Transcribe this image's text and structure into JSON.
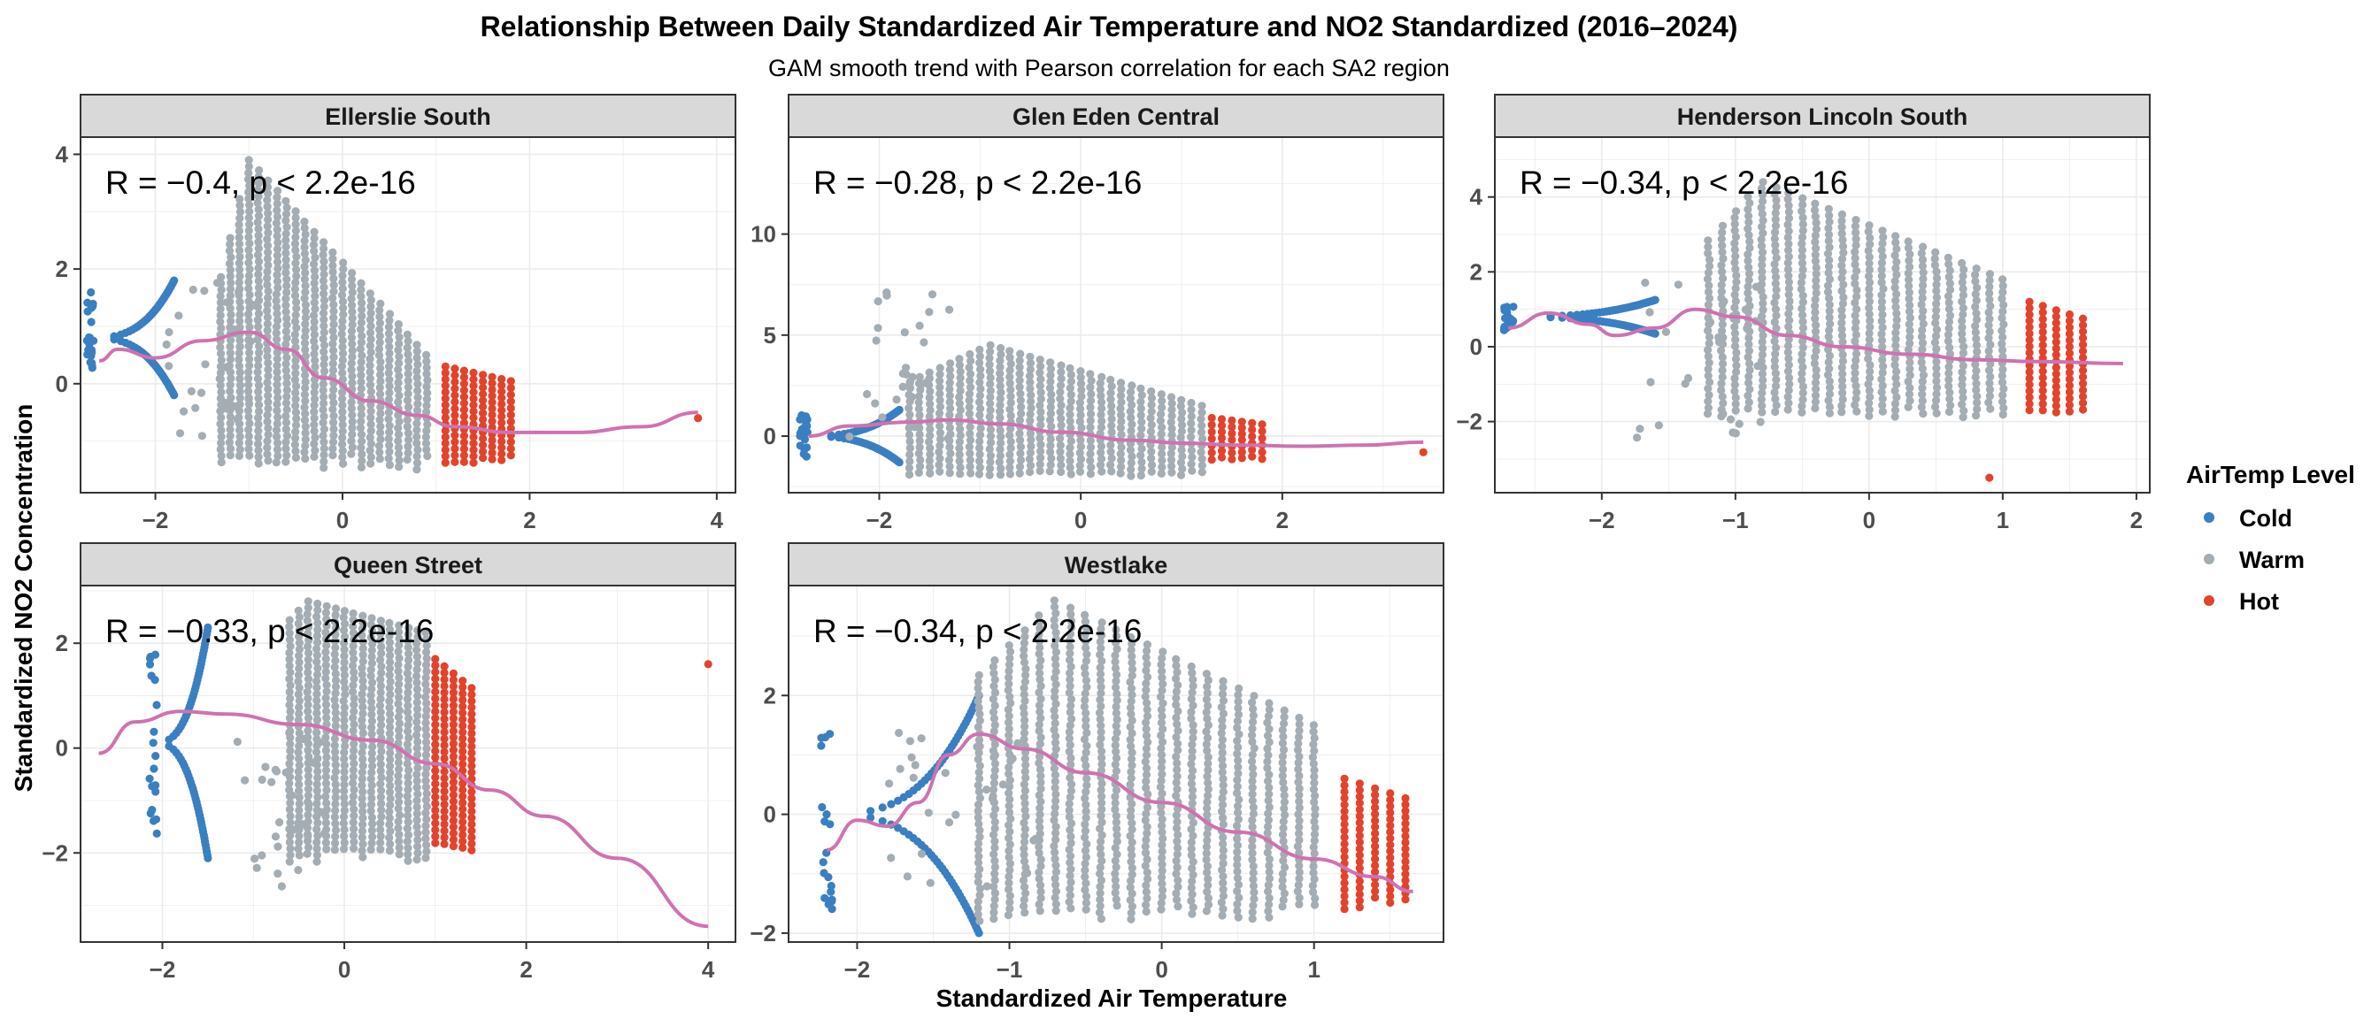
{
  "figure": {
    "title": "Relationship Between Daily Standardized Air Temperature and NO2 Standardized (2016–2024)",
    "subtitle": "GAM smooth trend with Pearson correlation for each SA2 region",
    "xlabel": "Standardized Air Temperature",
    "ylabel": "Standardized NO2 Concentration"
  },
  "legend": {
    "title": "AirTemp Level",
    "items": [
      {
        "label": "Cold",
        "color": "#3a7fc1"
      },
      {
        "label": "Warm",
        "color": "#a3adb3"
      },
      {
        "label": "Hot",
        "color": "#e2432c"
      }
    ]
  },
  "colors": {
    "cold": "#3a7fc1",
    "warm": "#a3adb3",
    "hot": "#e2432c",
    "smooth": "#cf72b0",
    "strip_fill": "#d9d9d9",
    "grid": "#ebebeb"
  },
  "chart_data": [
    {
      "type": "scatter",
      "panel": "Ellerslie South",
      "stat_label": "R = −0.4, p < 2.2e-16",
      "xlim": [
        -2.8,
        4.2
      ],
      "ylim": [
        -1.9,
        4.3
      ],
      "xticks": [
        -2,
        0,
        2,
        4
      ],
      "yticks": [
        0,
        2,
        4
      ],
      "cold_curve": {
        "yc": 0.8,
        "amp": 1.0,
        "vx": -2.7,
        "ex": -1.8
      },
      "warm_columns": {
        "start": -1.3,
        "end": 0.9,
        "step": 0.1,
        "center": -1.0,
        "top_peak": 3.9,
        "top_end": 0.5,
        "bottom": -1.5
      },
      "hot_columns": {
        "start": 1.1,
        "end": 1.8,
        "step": 0.1,
        "top": 0.3,
        "bottom": -1.4
      },
      "outlier": [
        3.8,
        -0.6
      ],
      "smooth": [
        [
          -2.6,
          0.4
        ],
        [
          -2.4,
          0.6
        ],
        [
          -2.0,
          0.45
        ],
        [
          -1.5,
          0.75
        ],
        [
          -1.0,
          0.9
        ],
        [
          -0.6,
          0.6
        ],
        [
          -0.2,
          0.1
        ],
        [
          0.3,
          -0.3
        ],
        [
          0.8,
          -0.55
        ],
        [
          1.2,
          -0.75
        ],
        [
          1.8,
          -0.85
        ],
        [
          2.5,
          -0.85
        ],
        [
          3.2,
          -0.75
        ],
        [
          3.8,
          -0.5
        ]
      ]
    },
    {
      "type": "scatter",
      "panel": "Glen Eden Central",
      "stat_label": "R = −0.28, p < 2.2e-16",
      "xlim": [
        -2.9,
        3.6
      ],
      "ylim": [
        -2.8,
        14.8
      ],
      "xticks": [
        -2,
        0,
        2
      ],
      "yticks": [
        0,
        5,
        10
      ],
      "cold_curve": {
        "yc": 0.0,
        "amp": 1.3,
        "vx": -2.75,
        "ex": -1.8
      },
      "warm_columns": {
        "start": -1.7,
        "end": 1.2,
        "step": 0.1,
        "center": -0.9,
        "top_peak": 4.5,
        "top_end": 1.5,
        "bottom": -2.0
      },
      "hot_columns": {
        "start": 1.3,
        "end": 1.8,
        "step": 0.1,
        "top": 0.9,
        "bottom": -1.2
      },
      "outlier": [
        3.4,
        -0.8
      ],
      "smooth": [
        [
          -2.7,
          0.0
        ],
        [
          -2.3,
          0.5
        ],
        [
          -1.7,
          0.7
        ],
        [
          -1.3,
          0.8
        ],
        [
          -0.8,
          0.6
        ],
        [
          -0.2,
          0.2
        ],
        [
          0.5,
          -0.2
        ],
        [
          1.0,
          -0.35
        ],
        [
          1.6,
          -0.45
        ],
        [
          2.2,
          -0.5
        ],
        [
          2.8,
          -0.45
        ],
        [
          3.4,
          -0.3
        ]
      ]
    },
    {
      "type": "scatter",
      "panel": "Henderson Lincoln South",
      "stat_label": "R = −0.34, p < 2.2e-16",
      "xlim": [
        -2.8,
        2.1
      ],
      "ylim": [
        -3.9,
        5.6
      ],
      "xticks": [
        -2,
        -1,
        0,
        1,
        2
      ],
      "yticks": [
        -2,
        0,
        2,
        4
      ],
      "cold_curve": {
        "yc": 0.8,
        "amp": 0.45,
        "vx": -2.7,
        "ex": -1.6
      },
      "warm_columns": {
        "start": -1.2,
        "end": 1.0,
        "step": 0.1,
        "center": -0.8,
        "top_peak": 4.4,
        "top_end": 1.8,
        "bottom": -1.9
      },
      "hot_columns": {
        "start": 1.2,
        "end": 1.6,
        "step": 0.1,
        "top": 1.2,
        "bottom": -1.8
      },
      "outlier": [
        0.9,
        -3.5
      ],
      "smooth": [
        [
          -2.7,
          0.5
        ],
        [
          -2.4,
          0.9
        ],
        [
          -2.1,
          0.6
        ],
        [
          -1.9,
          0.3
        ],
        [
          -1.6,
          0.5
        ],
        [
          -1.3,
          1.0
        ],
        [
          -1.0,
          0.8
        ],
        [
          -0.6,
          0.3
        ],
        [
          -0.2,
          0.0
        ],
        [
          0.3,
          -0.2
        ],
        [
          0.8,
          -0.35
        ],
        [
          1.3,
          -0.4
        ],
        [
          1.9,
          -0.45
        ]
      ]
    },
    {
      "type": "scatter",
      "panel": "Queen Street",
      "stat_label": "R = −0.33, p < 2.2e-16",
      "xlim": [
        -2.9,
        4.3
      ],
      "ylim": [
        -3.7,
        3.1
      ],
      "xticks": [
        -2,
        0,
        2,
        4
      ],
      "yticks": [
        -2,
        0,
        2
      ],
      "cold_curve": {
        "yc": 0.1,
        "amp": 2.2,
        "vx": -2.1,
        "ex": -1.5
      },
      "warm_columns": {
        "start": -0.6,
        "end": 0.9,
        "step": 0.1,
        "center": -0.4,
        "top_peak": 2.8,
        "top_end": 2.2,
        "bottom": -2.2
      },
      "hot_columns": {
        "start": 1.0,
        "end": 1.4,
        "step": 0.1,
        "top": 1.7,
        "bottom": -2.0
      },
      "outlier": [
        4.0,
        1.6
      ],
      "smooth": [
        [
          -2.7,
          -0.1
        ],
        [
          -2.3,
          0.5
        ],
        [
          -1.8,
          0.7
        ],
        [
          -1.3,
          0.65
        ],
        [
          -0.5,
          0.45
        ],
        [
          0.3,
          0.15
        ],
        [
          1.0,
          -0.3
        ],
        [
          1.6,
          -0.8
        ],
        [
          2.2,
          -1.3
        ],
        [
          3.0,
          -2.1
        ],
        [
          4.0,
          -3.4
        ]
      ]
    },
    {
      "type": "scatter",
      "panel": "Westlake",
      "stat_label": "R = −0.34, p < 2.2e-16",
      "xlim": [
        -2.45,
        1.85
      ],
      "ylim": [
        -2.15,
        3.85
      ],
      "xticks": [
        -2,
        -1,
        0,
        1
      ],
      "yticks": [
        -2,
        0,
        2
      ],
      "cold_curve": {
        "yc": 0.0,
        "amp": 2.0,
        "vx": -2.2,
        "ex": -1.2
      },
      "warm_columns": {
        "start": -1.2,
        "end": 1.0,
        "step": 0.1,
        "center": -0.7,
        "top_peak": 3.6,
        "top_end": 1.5,
        "bottom": -1.8
      },
      "hot_columns": {
        "start": 1.2,
        "end": 1.65,
        "step": 0.1,
        "top": 0.6,
        "bottom": -1.6
      },
      "outlier": null,
      "smooth": [
        [
          -2.2,
          -0.6
        ],
        [
          -2.0,
          -0.1
        ],
        [
          -1.8,
          -0.2
        ],
        [
          -1.6,
          0.2
        ],
        [
          -1.4,
          1.0
        ],
        [
          -1.2,
          1.35
        ],
        [
          -0.9,
          1.1
        ],
        [
          -0.5,
          0.7
        ],
        [
          0.0,
          0.2
        ],
        [
          0.5,
          -0.3
        ],
        [
          1.0,
          -0.75
        ],
        [
          1.4,
          -1.05
        ],
        [
          1.65,
          -1.3
        ]
      ]
    }
  ]
}
